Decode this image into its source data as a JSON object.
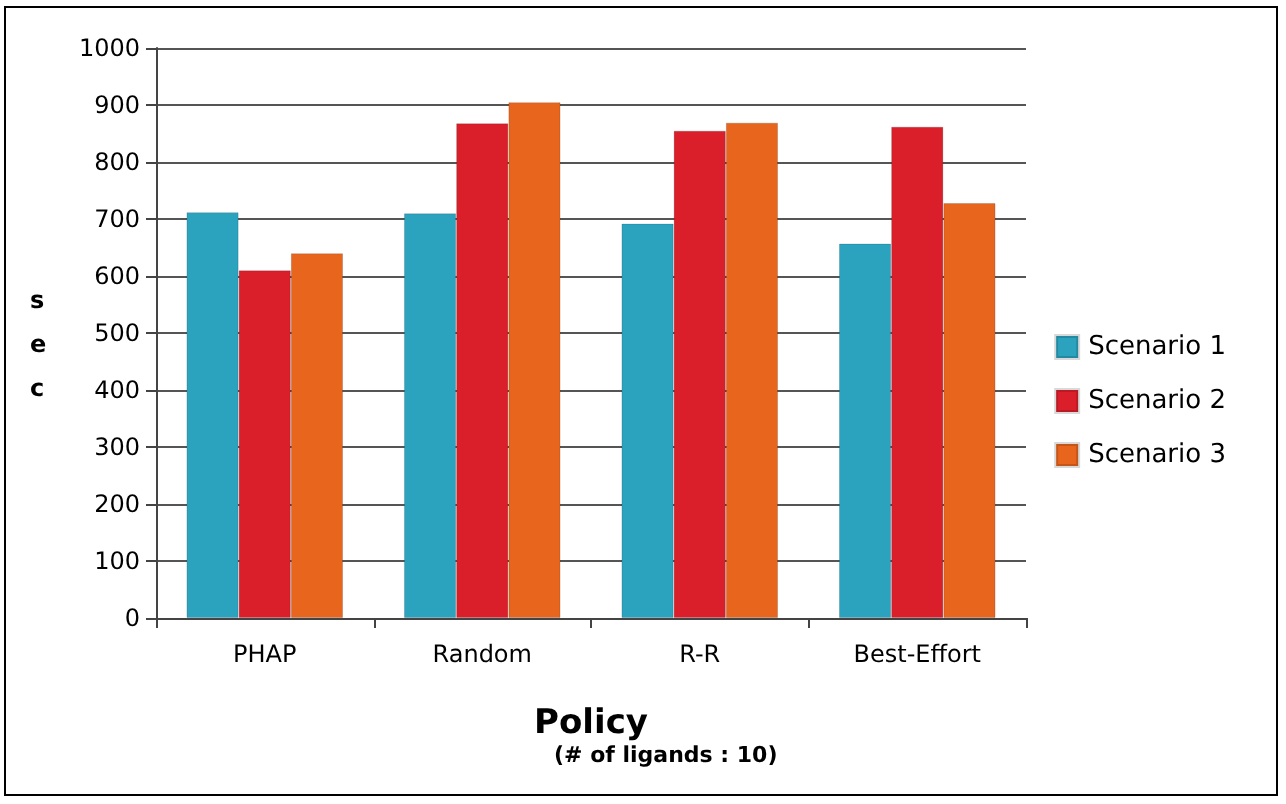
{
  "chart_data": {
    "type": "bar",
    "xlabel": "Policy",
    "ylabel": "sec",
    "annotations": [
      "(# of ligands : 10)"
    ],
    "categories": [
      "PHAP",
      "Random",
      "R-R",
      "Best-Effort"
    ],
    "series": [
      {
        "name": "Scenario 1",
        "color": "#2ba3bf",
        "values": [
          712,
          710,
          692,
          657
        ]
      },
      {
        "name": "Scenario 2",
        "color": "#da1f2a",
        "values": [
          610,
          868,
          855,
          862
        ]
      },
      {
        "name": "Scenario 3",
        "color": "#e8651e",
        "values": [
          640,
          905,
          869,
          728
        ]
      }
    ],
    "ylim": [
      0,
      1000
    ],
    "yticks": [
      0,
      100,
      200,
      300,
      400,
      500,
      600,
      700,
      800,
      900,
      1000
    ],
    "grid": "y",
    "legend": "right"
  }
}
